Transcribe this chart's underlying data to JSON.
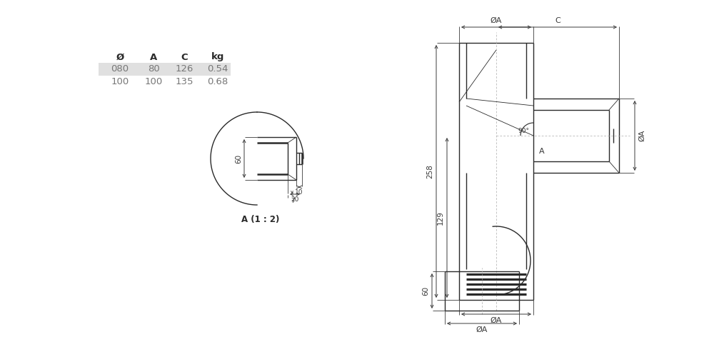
{
  "bg_color": "#ffffff",
  "line_color": "#2a2a2a",
  "dim_color": "#3a3a3a",
  "table_header": [
    "Ø",
    "A",
    "C",
    "kg"
  ],
  "table_row1": [
    "080",
    "80",
    "126",
    "0.54"
  ],
  "table_row2": [
    "100",
    "100",
    "135",
    "0.68"
  ],
  "row1_bg": "#e0e0e0",
  "font_size_table": 9.5,
  "font_size_dim": 7.5,
  "font_size_label": 8.5
}
